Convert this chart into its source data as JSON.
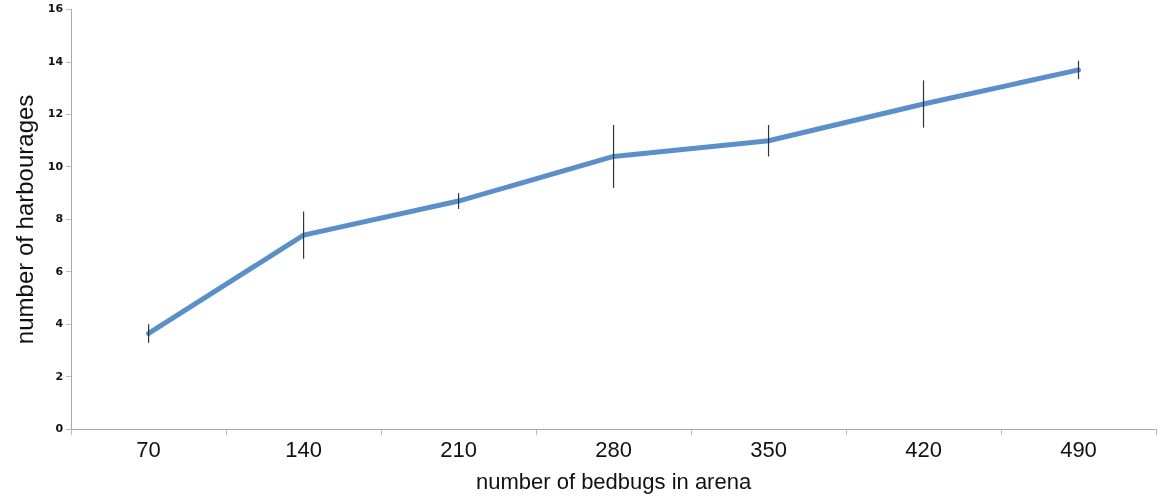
{
  "chart_data": {
    "type": "line",
    "xlabel": "number of bedbugs in arena",
    "ylabel": "number of harbourages",
    "categories": [
      "70",
      "140",
      "210",
      "280",
      "350",
      "420",
      "490"
    ],
    "series": [
      {
        "color": "#5b8fc9",
        "values": [
          3.65,
          7.4,
          8.7,
          10.4,
          11.0,
          12.4,
          13.7
        ],
        "errors": [
          0.35,
          0.9,
          0.3,
          1.2,
          0.6,
          0.9,
          0.35
        ]
      }
    ],
    "ylim": [
      0,
      16
    ],
    "yticks": [
      0,
      2,
      4,
      6,
      8,
      10,
      12,
      14,
      16
    ],
    "grid": false,
    "legend": false,
    "marker": "none",
    "line_style": "solid"
  }
}
